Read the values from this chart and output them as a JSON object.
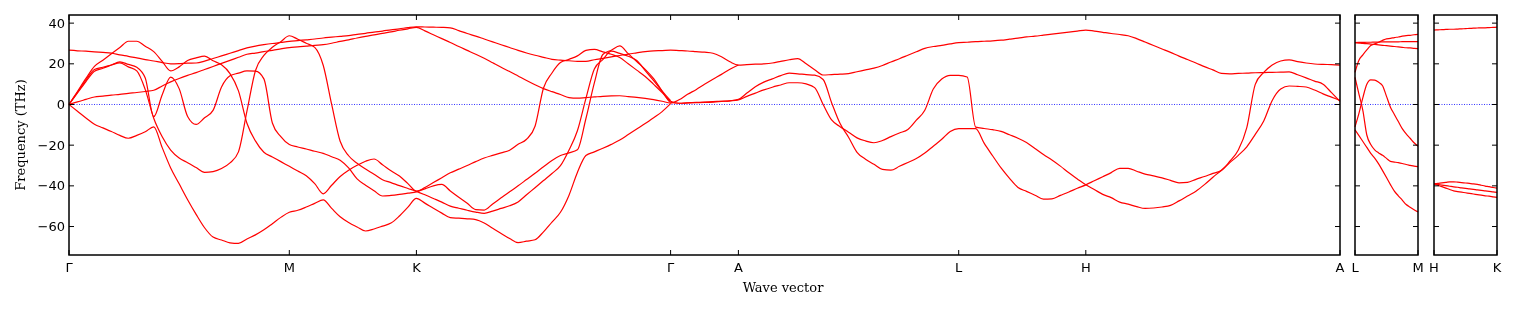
{
  "chart_data": [
    {
      "type": "line",
      "ylabel": "Frequency (THz)",
      "xlabel": "Wave vector",
      "ylim": [
        -74,
        44
      ],
      "categories": [
        "Γ",
        null,
        null,
        null,
        null,
        null,
        null,
        null,
        null,
        null,
        null,
        null,
        null,
        null,
        null,
        null,
        null,
        null,
        null,
        null,
        null,
        null,
        null,
        null,
        null,
        null,
        "M",
        null,
        null,
        null,
        null,
        null,
        null,
        null,
        null,
        null,
        null,
        null,
        null,
        null,
        null,
        "K",
        null,
        null,
        null,
        null,
        null,
        null,
        null,
        null,
        null,
        null,
        null,
        null,
        null,
        null,
        null,
        null,
        null,
        null,
        null,
        null,
        null,
        null,
        null,
        null,
        null,
        null,
        null,
        null,
        null,
        "Γ",
        null,
        null,
        null,
        null,
        null,
        null,
        null,
        "A",
        null,
        null,
        null,
        null,
        null,
        null,
        null,
        null,
        null,
        null,
        null,
        null,
        null,
        null,
        null,
        null,
        null,
        null,
        null,
        null,
        null,
        null,
        null,
        null,
        null,
        "L",
        null,
        null,
        null,
        null,
        null,
        null,
        null,
        null,
        null,
        null,
        null,
        null,
        null,
        null,
        "H",
        null,
        null,
        null,
        null,
        null,
        null,
        null,
        null,
        null,
        null,
        null,
        null,
        null,
        null,
        null,
        null,
        null,
        null,
        null,
        null,
        null,
        null,
        null,
        null,
        null,
        null,
        null,
        null,
        null,
        "A"
      ],
      "yticks": [
        -60,
        -40,
        -20,
        0,
        20,
        40
      ],
      "ref_lines": [
        {
          "axis": "y",
          "value": 0,
          "color": "#0000ff",
          "line_style": "dotted"
        }
      ],
      "series": [
        {
          "color": "#ff0000",
          "values": [
            26.7,
            26.4,
            26.2,
            25.9,
            25.6,
            25.3,
            24.4,
            23.7,
            22.9,
            22.1,
            21.4,
            20.6,
            20,
            20.1,
            20.3,
            20.4,
            21.3,
            22.6,
            23.9,
            25.2,
            26.5,
            27.8,
            28.7,
            29.4,
            30,
            30.5,
            31,
            31.4,
            31.8,
            32.2,
            32.7,
            33.1,
            33.5,
            33.9,
            34.5,
            35,
            35.6,
            36.1,
            36.7,
            37.2,
            37.8,
            38.2,
            38.1,
            38,
            37.9,
            37.7,
            36.3,
            34.9,
            33.6,
            32.2,
            30.8,
            29.4,
            28,
            26.6,
            25.3,
            24.2,
            23.2,
            22.2,
            21.8,
            21.5,
            21.2,
            21.2,
            22,
            22.7,
            23.4,
            24.1,
            24.8,
            25.4,
            26,
            26.4,
            26.5,
            26.7,
            26.5,
            26.3,
            26,
            25.7,
            25.2,
            23.5,
            21,
            19.4,
            19.6,
            19.8,
            20,
            20.4,
            21.2,
            22,
            22.6,
            20,
            17.1,
            14.5,
            14.7,
            14.9,
            15.2,
            16.1,
            17,
            17.9,
            19.2,
            20.9,
            22.5,
            24.2,
            25.9,
            27.6,
            28.5,
            29.1,
            29.8,
            30.4,
            30.6,
            30.9,
            31.1,
            31.3,
            31.6,
            32.1,
            32.6,
            33.2,
            33.6,
            34.1,
            34.6,
            35.1,
            35.6,
            36.1,
            36.6,
            36.1,
            35.5,
            34.9,
            34.4,
            33.8,
            32.4,
            30.7,
            29,
            27.3,
            25.6,
            23.8,
            22.1,
            20.4,
            18.6,
            17,
            15.3,
            15.1,
            15.3,
            15.4,
            15.6,
            15.7,
            15.8,
            15.9,
            16,
            14.6,
            13.1,
            11.5,
            10,
            5.8,
            1.5
          ]
        },
        {
          "color": "#ff0000",
          "values": [
            0,
            1.3,
            2.5,
            3.7,
            4.1,
            4.6,
            5,
            5.5,
            5.9,
            6.4,
            7,
            9.1,
            11.1,
            12.8,
            14.3,
            15.7,
            17.2,
            18.7,
            20.2,
            21.7,
            23.2,
            24.7,
            25.3,
            26,
            26.6,
            27.3,
            28,
            28.3,
            28.7,
            29.1,
            29.4,
            30.1,
            31,
            31.8,
            32.7,
            33.5,
            34.2,
            35,
            35.7,
            36.5,
            37.2,
            37.9,
            36.2,
            34.3,
            32.4,
            30.5,
            28.5,
            26.6,
            24.7,
            22.7,
            20.5,
            18.3,
            16.2,
            14,
            11.8,
            9.7,
            7.8,
            6.3,
            4.9,
            3.4,
            3.1,
            3.4,
            3.7,
            4,
            4.2,
            4.3,
            3.9,
            3.5,
            3,
            2.4,
            1.6,
            0.7,
            2.3,
            5,
            7.3,
            9.9,
            12.4,
            14.8,
            17.3,
            19.4,
            null,
            null,
            null,
            null,
            null,
            null,
            null,
            null,
            null,
            null,
            null,
            null,
            null,
            null,
            null,
            null,
            null,
            null,
            null,
            null,
            null,
            null,
            null,
            null,
            null,
            null,
            null,
            null,
            null,
            null,
            null,
            null,
            null,
            null,
            null,
            null,
            null,
            null,
            null,
            null,
            null,
            null,
            null,
            null,
            null,
            null,
            null,
            null,
            null,
            null,
            null,
            null,
            null,
            null,
            null,
            null,
            null,
            null,
            null,
            null,
            null,
            null,
            null,
            null,
            null,
            null,
            null,
            null,
            null,
            null,
            null
          ]
        },
        {
          "color": "#ff0000",
          "values": [
            0,
            6.4,
            12.8,
            18.7,
            21.8,
            24.9,
            28,
            31.1,
            31.1,
            28.6,
            26,
            21.2,
            16.5,
            18.5,
            21.6,
            22.9,
            23.8,
            21.5,
            19.5,
            15.2,
            6.7,
            -9.2,
            -17.9,
            -23.5,
            -25.8,
            -28.1,
            -30.4,
            -32.7,
            -35,
            -38.9,
            -43.9,
            -39.7,
            -35.4,
            -32.3,
            -29.9,
            -27.9,
            -26.8,
            -29.6,
            -32.6,
            -35.2,
            -38.9,
            -42.6,
            -41.5,
            -40,
            -39.3,
            -42.5,
            -45.6,
            -48.6,
            -51.7,
            -51.9,
            -48.9,
            -45.9,
            -42.9,
            -40,
            -36.9,
            -33.8,
            -30.6,
            -27.5,
            -25.1,
            -23.8,
            -22.3,
            -7,
            10.6,
            24.6,
            26.7,
            28.8,
            25,
            21.1,
            17.3,
            12.7,
            6.6,
            1.1,
            0.6,
            0.8,
            1,
            1.2,
            1.4,
            1.6,
            1.8,
            2.5,
            5.6,
            8.7,
            11,
            12.6,
            14.2,
            15.4,
            15.1,
            14.7,
            14.4,
            12.3,
            0.9,
            -9.4,
            -16.1,
            -23.5,
            -26.9,
            -29.4,
            -31.9,
            -32.3,
            -30.4,
            -28.5,
            -26.6,
            -23.9,
            -20.5,
            -17.1,
            -13.3,
            -11.9,
            -11.9,
            -11.9,
            -19,
            -25.2,
            -31.2,
            -36.3,
            -40.8,
            -42.7,
            -44.6,
            -46.5,
            -46.4,
            -44.7,
            -43,
            -41.2,
            -39.5,
            -37.5,
            -35.5,
            -33.5,
            -31.4,
            -31.4,
            -32.8,
            -34.2,
            -35.1,
            -36.1,
            -37.3,
            -38.5,
            -38.3,
            -36.8,
            -35.4,
            -33.9,
            -32.5,
            -27.9,
            -22.4,
            -11.4,
            9.9,
            15.8,
            19.4,
            21.4,
            21.9,
            21.1,
            20.4,
            19.9,
            19.7,
            19.6,
            19.4
          ]
        },
        {
          "color": "#ff0000",
          "values": [
            0,
            5.7,
            11.3,
            16.3,
            17.8,
            19.4,
            21,
            19.7,
            18.3,
            13,
            -6,
            4.8,
            13.5,
            7.8,
            -5.9,
            -9.8,
            -6.5,
            -2.9,
            8.6,
            14.1,
            15.4,
            16.5,
            16.4,
            12.6,
            -9.1,
            -15.8,
            -19.7,
            -20.9,
            -21.9,
            -23,
            -24,
            -25.7,
            -27.4,
            -31.2,
            -36.6,
            -39.7,
            -42.4,
            -45,
            -44.7,
            -44.2,
            -43.6,
            -43,
            -40.8,
            -38.4,
            -36,
            -33.6,
            -31.8,
            -30,
            -28.1,
            -26.3,
            -25,
            -23.8,
            -22.5,
            -19.6,
            -17.1,
            -10.7,
            8.1,
            15.5,
            20.6,
            22.2,
            23.9,
            26.6,
            27.1,
            25.9,
            24.7,
            23.1,
            20,
            16.9,
            13.8,
            9.9,
            5.9,
            1.6,
            0.6,
            0.8,
            0.9,
            1,
            1.2,
            1.5,
            1.8,
            2.3,
            4,
            5.6,
            7.2,
            8.5,
            9.6,
            10.7,
            10.7,
            10.1,
            8.3,
            0,
            -7.6,
            -10.9,
            -13.6,
            -16.4,
            -17.9,
            -18.8,
            -17.7,
            -15.8,
            -14,
            -12.3,
            -7.7,
            -2.8,
            7.6,
            12.5,
            14.3,
            14.3,
            13.5,
            -11.1,
            -11.8,
            -12.4,
            -13.2,
            -14.9,
            -16.6,
            -18.7,
            -21.6,
            -24.6,
            -27.3,
            -30.3,
            -33.6,
            -36.6,
            -39.5,
            -41.8,
            -44.2,
            -45.8,
            -48,
            -49,
            -50.2,
            -51.1,
            -50.9,
            -50.4,
            -49.6,
            -47.4,
            -45,
            -42.6,
            -39.4,
            -35.8,
            -32.3,
            -28.6,
            -25,
            -20.8,
            -14.7,
            -8.1,
            2,
            7.6,
            9.1,
            8.9,
            8.6,
            7.1,
            5.2,
            3.6,
            2
          ]
        },
        {
          "color": "#ff0000",
          "values": [
            0,
            6,
            12,
            17.2,
            18.3,
            19.4,
            20.5,
            18.5,
            16.5,
            7.3,
            -6.8,
            -15.9,
            -22.4,
            -26.3,
            -28.6,
            -31,
            -33.4,
            -33,
            -31.5,
            -28.7,
            -23.3,
            -3.3,
            16.6,
            24.1,
            28.1,
            30.9,
            33.8,
            32.1,
            30.1,
            28.1,
            19.3,
            0,
            -18.1,
            -25.2,
            -28.9,
            -31.7,
            -34.3,
            -37,
            -38.4,
            -39.9,
            -41.3,
            -42.7,
            -44.4,
            -46.2,
            -48,
            -50,
            -51,
            -52,
            -52.9,
            -53.5,
            -52.4,
            -51.1,
            -49.8,
            -47.9,
            -44.4,
            -40.9,
            -37.4,
            -33.9,
            -30.1,
            -22.5,
            -12.9,
            2.9,
            17.4,
            22.1,
            26.2,
            25.1,
            23.7,
            21.6,
            16.7,
            11.7,
            6.6,
            1.9,
            null,
            null,
            null,
            null,
            null,
            null,
            null,
            null,
            null,
            null,
            null,
            null,
            null,
            null,
            null,
            null,
            null,
            null,
            null,
            null,
            null,
            null,
            null,
            null,
            null,
            null,
            null,
            null,
            null,
            null,
            null,
            null,
            null,
            null,
            null,
            null,
            null,
            null,
            null,
            null,
            null,
            null,
            null,
            null,
            null,
            null,
            null,
            null,
            null,
            null,
            null,
            null,
            null,
            null,
            null,
            null,
            null,
            null,
            null,
            null,
            null,
            null,
            null,
            null,
            null,
            null,
            null,
            null,
            null,
            null,
            null,
            null,
            null,
            null,
            null,
            null,
            null,
            null,
            null
          ]
        },
        {
          "color": "#ff0000",
          "values": [
            0,
            -3.3,
            -6.6,
            -9.7,
            -11.5,
            -13.3,
            -15.2,
            -16.6,
            -15.2,
            -13.4,
            -11,
            -21.2,
            -31.2,
            -39,
            -46.8,
            -54,
            -60.6,
            -65.2,
            -66.6,
            -68,
            -68.3,
            -66.1,
            -64.1,
            -61.6,
            -58.6,
            -55.5,
            -53,
            -52,
            -50.4,
            -48.6,
            -46.9,
            -51.1,
            -55.2,
            -58,
            -60.2,
            -62.2,
            -61.2,
            -59.8,
            -58.3,
            -54.8,
            -50.5,
            -46.2,
            -48.5,
            -51,
            -53.4,
            -55.6,
            -55.9,
            -56.2,
            -56.6,
            -58.3,
            -60.9,
            -63.4,
            -65.9,
            -67.9,
            -67.2,
            -66.5,
            -62.6,
            -57.8,
            -53,
            -44.7,
            -33.4,
            -25.1,
            -23.3,
            -21.5,
            -19.6,
            -17.5,
            -14.8,
            -12.1,
            -9.4,
            -6.5,
            -3.5,
            0.4,
            null,
            null,
            null,
            null,
            null,
            null,
            null,
            null,
            null,
            null,
            null,
            null,
            null,
            null,
            null,
            null,
            null,
            null,
            null,
            null,
            null,
            null,
            null,
            null,
            null,
            null,
            null,
            null,
            null,
            null,
            null,
            null,
            null,
            null,
            null,
            null,
            null,
            null,
            null,
            null,
            null,
            null,
            null,
            null,
            null,
            null,
            null,
            null,
            null,
            null,
            null,
            null,
            null,
            null,
            null,
            null,
            null,
            null,
            null,
            null,
            null,
            null,
            null,
            null,
            null,
            null,
            null,
            null,
            null,
            null,
            null,
            null,
            null,
            null,
            null,
            null,
            null,
            null,
            null
          ]
        }
      ]
    },
    {
      "type": "line",
      "ylim": [
        -74,
        44
      ],
      "tick_labels": "x",
      "categories": [
        "L",
        null,
        null,
        null,
        null,
        null,
        null,
        null,
        null,
        null,
        null,
        null,
        null,
        null,
        null,
        null,
        "M"
      ],
      "yticks": [
        -60,
        -40,
        -20,
        0,
        20,
        40
      ],
      "ref_lines": [
        {
          "axis": "y",
          "value": 0,
          "color": "#0000ff",
          "line_style": "dotted"
        }
      ],
      "series": [
        {
          "color": "#ff0000",
          "values": [
            30.4,
            30.5,
            30.5,
            30.6,
            30.6,
            30.7,
            30.7,
            30.8,
            30.8,
            30.8,
            30.8,
            30.8,
            30.9,
            30.9,
            30.9,
            30.9,
            30.9
          ]
        },
        {
          "color": "#ff0000",
          "values": [
            30.4,
            30.2,
            30,
            29.9,
            29.7,
            29.5,
            29.3,
            29.1,
            28.9,
            28.7,
            28.5,
            28.3,
            28.1,
            27.9,
            27.8,
            27.6,
            27.5
          ]
        },
        {
          "color": "#ff0000",
          "values": [
            15.8,
            21.8,
            24.4,
            26.8,
            29,
            29.8,
            30.6,
            31.5,
            32.3,
            32.5,
            32.9,
            33.2,
            33.6,
            33.9,
            34,
            34.3,
            34.5
          ]
        },
        {
          "color": "#ff0000",
          "values": [
            13.3,
            5.1,
            -3,
            -15,
            -19.7,
            -22.3,
            -23.8,
            -25,
            -26.5,
            -28,
            -28.3,
            -28.6,
            -29,
            -29.5,
            -29.9,
            -30.3,
            -30.6
          ]
        },
        {
          "color": "#ff0000",
          "values": [
            -11,
            -4.4,
            3.4,
            9.9,
            12.1,
            12,
            10.9,
            9.2,
            4,
            -1.3,
            -4.9,
            -8.4,
            -11.9,
            -14.5,
            -16.6,
            -18.8,
            -20.5
          ]
        },
        {
          "color": "#ff0000",
          "values": [
            -12.5,
            -15.3,
            -18.2,
            -21.1,
            -24,
            -26.4,
            -29.2,
            -32.5,
            -35.9,
            -39.4,
            -42.6,
            -44.9,
            -47,
            -49.2,
            -50.5,
            -51.7,
            -52.8
          ]
        }
      ]
    },
    {
      "type": "line",
      "ylim": [
        -74,
        44
      ],
      "tick_labels": "x",
      "categories": [
        "H",
        null,
        null,
        null,
        null,
        null,
        null,
        null,
        null,
        null,
        null,
        null,
        null,
        null,
        null,
        null,
        "K"
      ],
      "yticks": [
        -60,
        -40,
        -20,
        0,
        20,
        40
      ],
      "ref_lines": [
        {
          "axis": "y",
          "value": 0,
          "color": "#0000ff",
          "line_style": "dotted"
        }
      ],
      "series": [
        {
          "color": "#ff0000",
          "values": [
            36.6,
            36.7,
            36.8,
            36.9,
            37,
            37,
            37.1,
            37.2,
            37.3,
            37.4,
            37.5,
            37.6,
            37.7,
            37.7,
            37.8,
            37.9,
            38
          ]
        },
        {
          "color": "#ff0000",
          "values": [
            -39,
            -38.8,
            -38.5,
            -38.3,
            -38,
            -38,
            -38.2,
            -38.4,
            -38.6,
            -38.8,
            -39,
            -39.3,
            -39.7,
            -40.1,
            -40.4,
            -40.8,
            -41.1
          ]
        },
        {
          "color": "#ff0000",
          "values": [
            -39,
            -39.3,
            -39.6,
            -39.9,
            -40.2,
            -40.5,
            -40.7,
            -41,
            -41.2,
            -41.5,
            -41.7,
            -42,
            -42.2,
            -42.5,
            -42.7,
            -43,
            -43.2
          ]
        },
        {
          "color": "#ff0000",
          "values": [
            -39,
            -39.7,
            -40.4,
            -41.1,
            -41.8,
            -42.5,
            -42.8,
            -43.1,
            -43.4,
            -43.7,
            -44,
            -44.3,
            -44.6,
            -44.9,
            -45.1,
            -45.4,
            -45.7
          ]
        }
      ]
    }
  ]
}
